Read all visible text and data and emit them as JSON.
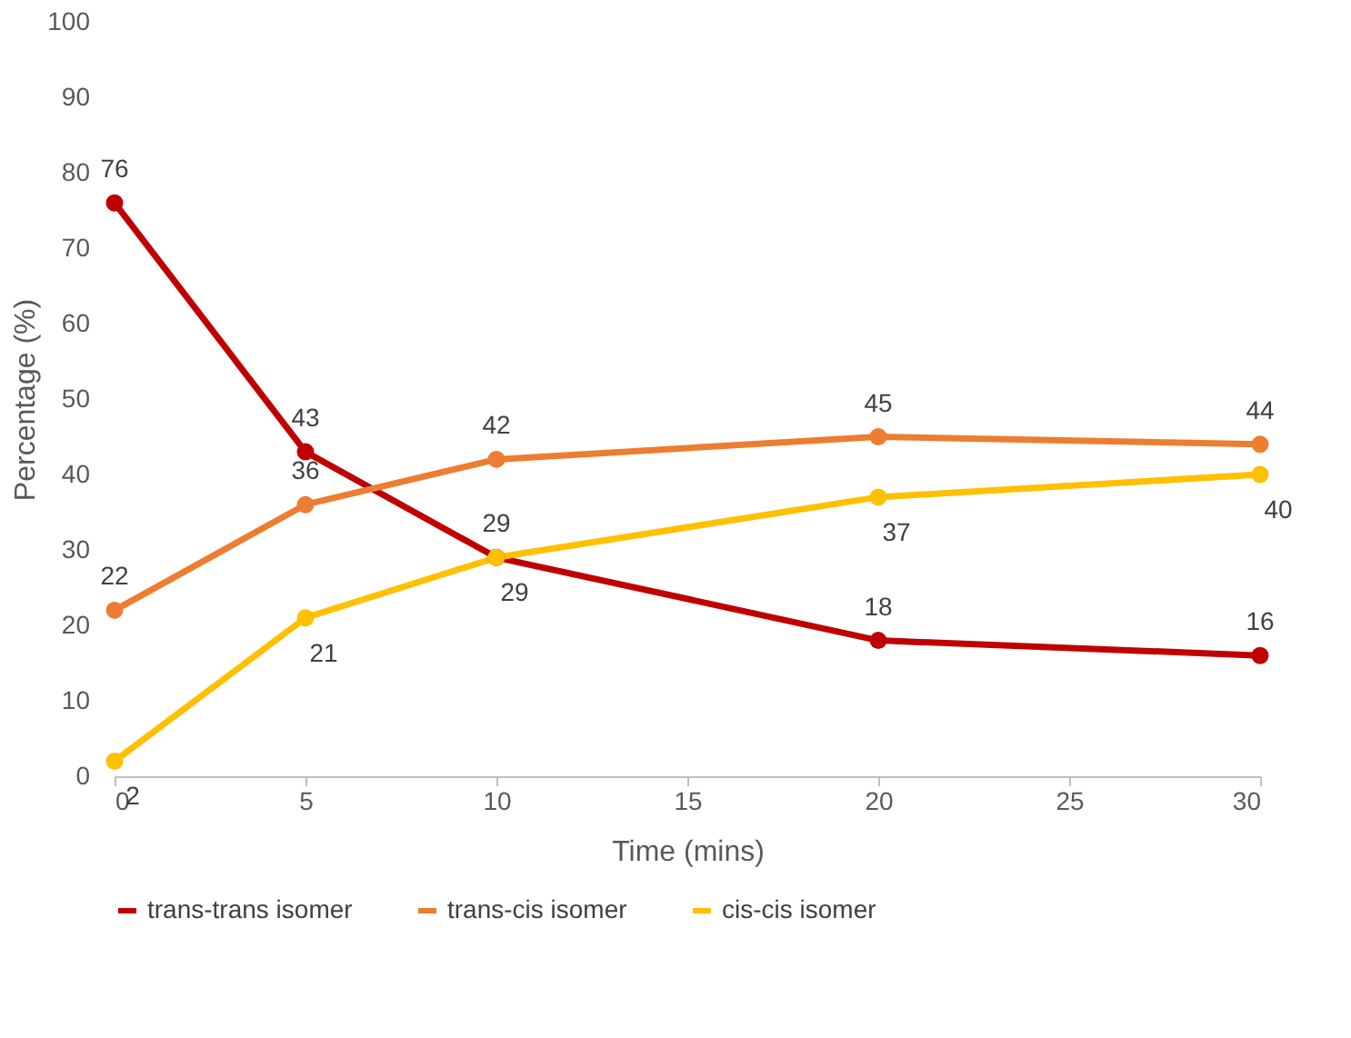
{
  "chart_data": {
    "type": "line",
    "xlabel": "Time (mins)",
    "ylabel": "Percentage (%)",
    "x": [
      0,
      5,
      10,
      20,
      30
    ],
    "series": [
      {
        "name": "trans-trans isomer",
        "color": "#c00000",
        "values": [
          76,
          43,
          29,
          18,
          16
        ]
      },
      {
        "name": "trans-cis isomer",
        "color": "#ed7d31",
        "values": [
          22,
          36,
          42,
          45,
          44
        ]
      },
      {
        "name": "cis-cis isomer",
        "color": "#ffc000",
        "values": [
          2,
          21,
          29,
          37,
          40
        ]
      }
    ],
    "xlim": [
      0,
      30
    ],
    "xticks": [
      0,
      5,
      10,
      15,
      20,
      25,
      30
    ],
    "ylim": [
      0,
      100
    ],
    "yticks": [
      0,
      10,
      20,
      30,
      40,
      50,
      60,
      70,
      80,
      90,
      100
    ],
    "grid": false,
    "legend": "bottom",
    "marker": "circle",
    "line_style": "solid",
    "data_labels": true
  }
}
